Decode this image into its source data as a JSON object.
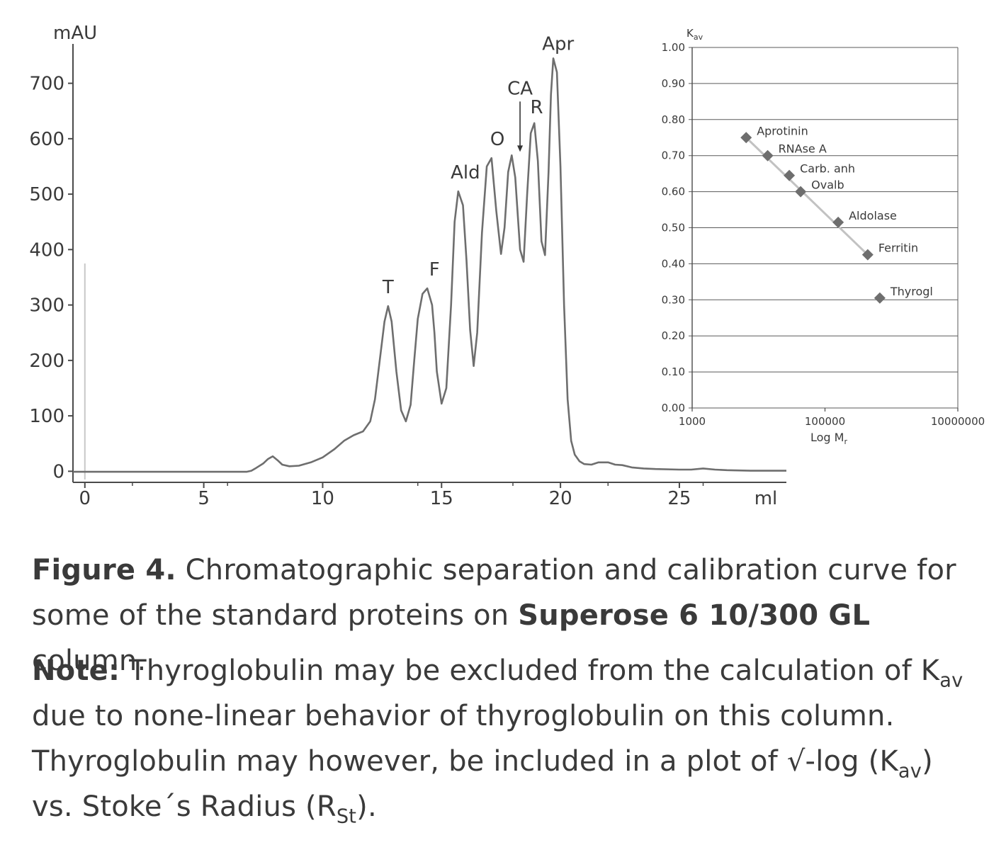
{
  "chart_data": [
    {
      "type": "line",
      "ylabel": "mAU",
      "xlabel": "ml",
      "xlim": [
        -0.5,
        29.5
      ],
      "ylim": [
        -20,
        780
      ],
      "xticks": [
        0,
        5,
        10,
        15,
        20,
        25
      ],
      "xtick_labels": [
        "0",
        "5",
        "10",
        "15",
        "20",
        "25"
      ],
      "yticks": [
        0,
        100,
        200,
        300,
        400,
        500,
        600,
        700
      ],
      "ytick_labels": [
        "0",
        "100",
        "200",
        "300",
        "400",
        "500",
        "600",
        "700"
      ],
      "injection_marker_x": 0,
      "series": [
        {
          "x": [
            -0.5,
            0,
            1,
            2,
            3,
            4,
            5,
            6,
            6.5,
            6.8,
            7.0,
            7.2,
            7.5,
            7.7,
            7.9,
            8.1,
            8.3,
            8.6,
            9.0,
            9.5,
            10.0,
            10.5,
            10.9,
            11.3,
            11.7,
            12.0,
            12.2,
            12.4,
            12.6,
            12.75,
            12.9,
            13.1,
            13.3,
            13.5,
            13.7,
            13.85,
            14.0,
            14.2,
            14.4,
            14.6,
            14.7,
            14.8,
            15.0,
            15.2,
            15.4,
            15.55,
            15.7,
            15.9,
            16.05,
            16.2,
            16.35,
            16.5,
            16.7,
            16.9,
            17.1,
            17.3,
            17.5,
            17.65,
            17.8,
            17.95,
            18.1,
            18.3,
            18.45,
            18.6,
            18.75,
            18.9,
            19.05,
            19.2,
            19.35,
            19.5,
            19.6,
            19.7,
            19.85,
            20.0,
            20.15,
            20.3,
            20.45,
            20.6,
            20.8,
            21.0,
            21.3,
            21.6,
            22.0,
            22.3,
            22.6,
            23.0,
            23.5,
            24.0,
            25.0,
            25.5,
            26.0,
            26.5,
            27.0,
            28.0,
            29.0,
            29.5
          ],
          "y": [
            -1,
            -1,
            -1,
            -1,
            -1,
            -1,
            -1,
            -1,
            -1,
            -1,
            1,
            6,
            14,
            22,
            27,
            20,
            12,
            9,
            10,
            16,
            25,
            40,
            55,
            65,
            72,
            90,
            130,
            200,
            270,
            298,
            270,
            180,
            110,
            90,
            120,
            200,
            275,
            320,
            330,
            300,
            250,
            180,
            122,
            150,
            300,
            450,
            505,
            480,
            380,
            255,
            190,
            250,
            430,
            550,
            565,
            470,
            392,
            440,
            540,
            570,
            530,
            400,
            378,
            500,
            610,
            628,
            560,
            415,
            390,
            540,
            680,
            745,
            720,
            550,
            300,
            130,
            55,
            30,
            18,
            13,
            12,
            16,
            16,
            12,
            11,
            7,
            5,
            4,
            3,
            3,
            5,
            3,
            2,
            1,
            1,
            1
          ]
        }
      ],
      "peak_labels": [
        {
          "text": "T",
          "x": 12.75,
          "y": 298
        },
        {
          "text": "F",
          "x": 14.7,
          "y": 330
        },
        {
          "text": "Ald",
          "x": 16.0,
          "y": 505
        },
        {
          "text": "O",
          "x": 17.35,
          "y": 565
        },
        {
          "text": "CA",
          "x": 18.3,
          "y": 570
        },
        {
          "text": "R",
          "x": 19.0,
          "y": 628
        },
        {
          "text": "Apr",
          "x": 19.9,
          "y": 745
        }
      ]
    },
    {
      "type": "scatter",
      "ylabel": "Kav",
      "xlabel": "Log Mr",
      "x_scale": "log",
      "xlim": [
        1000,
        10000000
      ],
      "ylim": [
        0,
        1
      ],
      "xtick_values": [
        1000,
        100000,
        10000000
      ],
      "xtick_labels": [
        "1000",
        "100000",
        "10000000"
      ],
      "ytick_values": [
        0,
        0.1,
        0.2,
        0.3,
        0.4,
        0.5,
        0.6,
        0.7,
        0.8,
        0.9,
        1.0
      ],
      "ytick_labels": [
        "0.00",
        "0.10",
        "0.20",
        "0.30",
        "0.40",
        "0.50",
        "0.60",
        "0.70",
        "0.80",
        "0.90",
        "1.00"
      ],
      "grid": true,
      "points": [
        {
          "label": "Aprotinin",
          "x": 6500,
          "y": 0.75
        },
        {
          "label": "RNAse A",
          "x": 13700,
          "y": 0.7
        },
        {
          "label": "Carb. anh",
          "x": 29000,
          "y": 0.645
        },
        {
          "label": "Ovalb",
          "x": 43000,
          "y": 0.6
        },
        {
          "label": "Aldolase",
          "x": 158000,
          "y": 0.515
        },
        {
          "label": "Ferritin",
          "x": 440000,
          "y": 0.425
        },
        {
          "label": "Thyrogl",
          "x": 669000,
          "y": 0.305
        }
      ],
      "fit_line": {
        "x": [
          6500,
          440000
        ],
        "y": [
          0.75,
          0.425
        ]
      }
    }
  ],
  "caption": {
    "figure_label": "Figure 4.",
    "figure_text_1": " Chromatographic separation and calibration curve for some of the standard proteins on ",
    "figure_bold": "Superose 6 10/300 GL",
    "figure_text_2": " column.",
    "note_label": "Note:",
    "note_text_1": "  Thyroglobulin may be excluded from the calculation of K",
    "note_sub_1": "av",
    "note_text_2": " due to none-linear behavior of thyroglobulin on this column. Thyroglobulin may however, be included in a plot of √-log (K",
    "note_sub_2": "av",
    "note_text_3": ") vs. Stoke´s Radius (R",
    "note_sub_3": "St",
    "note_text_4": ")."
  },
  "colors": {
    "trace": "#6e6e6e",
    "axis": "#4a4a4a",
    "marker": "#6e6e6e",
    "fit": "#c2c2c2",
    "grid": "#5a5a5a",
    "injection": "#c8c8c8",
    "text": "#3a3a3a"
  }
}
